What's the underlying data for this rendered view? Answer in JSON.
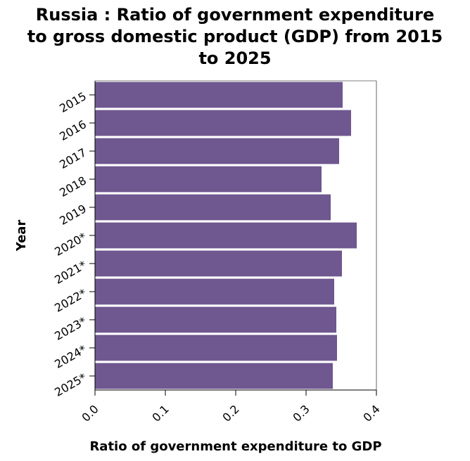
{
  "chart_data": {
    "type": "bar",
    "orientation": "horizontal",
    "title": "Russia : Ratio of government expenditure to gross domestic product (GDP) from 2015 to 2025",
    "title_lines": [
      "Russia : Ratio of government expenditure",
      "to gross domestic product (GDP) from 2015",
      "to 2025"
    ],
    "categories": [
      "2015",
      "2016",
      "2017",
      "2018",
      "2019",
      "2020*",
      "2021*",
      "2022*",
      "2023*",
      "2024*",
      "2025*"
    ],
    "values": [
      0.352,
      0.364,
      0.347,
      0.322,
      0.335,
      0.372,
      0.351,
      0.34,
      0.343,
      0.344,
      0.338
    ],
    "xlabel": "Ratio of government expenditure to GDP",
    "ylabel": "Year",
    "xlim": [
      0,
      0.4
    ],
    "xticks": [
      0.0,
      0.1,
      0.2,
      0.3,
      0.4
    ],
    "xtick_labels": [
      "0.0",
      "0.1",
      "0.2",
      "0.3",
      "0.4"
    ],
    "grid": false,
    "bar_color": "#6f578f"
  }
}
